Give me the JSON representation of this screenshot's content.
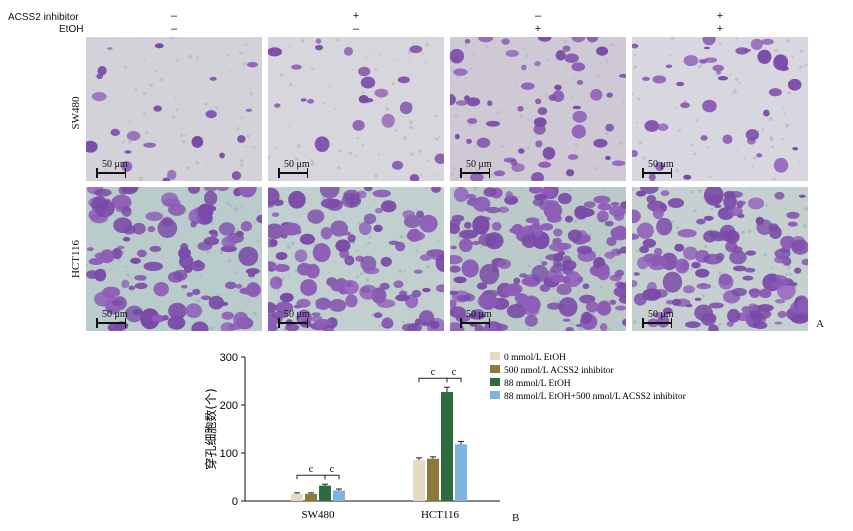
{
  "figure_a": {
    "row_header_1": "ACSS2 inhibitor",
    "row_header_2": "EtOH",
    "acss2_signs": [
      "–",
      "+",
      "–",
      "+"
    ],
    "etoh_signs": [
      "–",
      "–",
      "+",
      "+"
    ],
    "cell_lines": [
      "SW480",
      "HCT116"
    ],
    "scale_label": "50 μm",
    "panel_letter": "A"
  },
  "figure_b": {
    "panel_letter": "B"
  },
  "chart_data": {
    "type": "bar",
    "categories": [
      "SW480",
      "HCT116"
    ],
    "ylabel": "穿孔细胞数(个)",
    "xlabel": "",
    "ylim": [
      0,
      300
    ],
    "yticks": [
      0,
      100,
      200,
      300
    ],
    "legend_position": "top-right",
    "significance_label": "c",
    "series": [
      {
        "name": "0 mmol/L EtOH",
        "color": "#e4dcc2",
        "values": [
          15,
          85
        ],
        "errors": [
          2,
          5
        ]
      },
      {
        "name": "500 nmol/L ACSS2 inhibitor",
        "color": "#8a7a3c",
        "values": [
          15,
          88
        ],
        "errors": [
          2,
          4
        ]
      },
      {
        "name": "88 mmol/L EtOH",
        "color": "#2e6b3e",
        "values": [
          32,
          227
        ],
        "errors": [
          3,
          10
        ]
      },
      {
        "name": "88 mmol/L EtOH+500 nmol/L ACSS2 inhibitor",
        "color": "#7fb3de",
        "values": [
          22,
          118
        ],
        "errors": [
          3,
          6
        ]
      }
    ]
  }
}
